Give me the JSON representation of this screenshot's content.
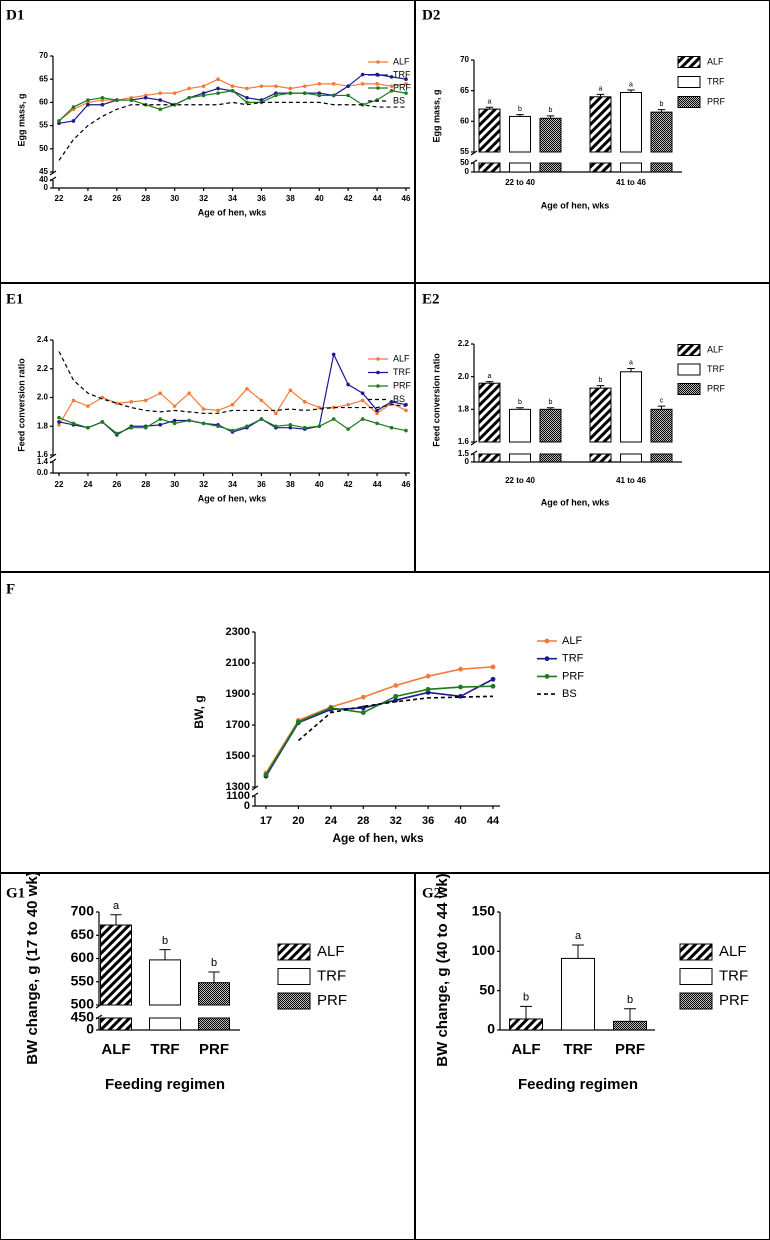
{
  "chart_data": [
    {
      "panel": "D1",
      "type": "line",
      "xlabel": "Age of hen, wks",
      "ylabel": "Egg mass, g",
      "x": [
        22,
        23,
        24,
        25,
        26,
        27,
        28,
        29,
        30,
        31,
        32,
        33,
        34,
        35,
        36,
        37,
        38,
        39,
        40,
        41,
        42,
        43,
        44,
        45,
        46
      ],
      "xlim": [
        22,
        46
      ],
      "xticks": [
        22,
        24,
        26,
        28,
        30,
        32,
        34,
        36,
        38,
        40,
        42,
        44,
        46
      ],
      "ylim": [
        45,
        70
      ],
      "yticks": [
        45,
        50,
        55,
        60,
        65,
        70
      ],
      "ylim_lower": [
        0,
        40
      ],
      "yticks_lower": [
        0,
        40
      ],
      "series": [
        {
          "name": "ALF",
          "color": "#f47a3a",
          "markers": true,
          "dashed": false,
          "values": [
            56,
            58.5,
            60,
            60.5,
            60.5,
            61,
            61.5,
            62,
            62,
            63,
            63.5,
            65,
            63.5,
            63,
            63.5,
            63.5,
            63,
            63.5,
            64,
            64,
            63.5,
            64,
            64,
            63.5,
            64
          ]
        },
        {
          "name": "TRF",
          "color": "#1a1a8c",
          "markers": true,
          "dashed": false,
          "values": [
            55.5,
            56,
            59.5,
            59.5,
            60.5,
            60.5,
            61,
            60.5,
            59.5,
            61,
            62,
            63,
            62.5,
            61,
            60.5,
            62,
            62,
            62,
            62,
            61.5,
            63.5,
            66,
            66,
            65.5,
            65
          ]
        },
        {
          "name": "PRF",
          "color": "#1e7a1e",
          "markers": true,
          "dashed": false,
          "values": [
            56,
            59,
            60.5,
            61,
            60.5,
            60.5,
            59.5,
            58.5,
            59.5,
            61,
            61.5,
            62,
            62.5,
            60,
            60,
            61.5,
            62,
            62,
            61.5,
            61.5,
            61.5,
            59.5,
            60.5,
            62.5,
            62
          ]
        },
        {
          "name": "BS",
          "color": "#000000",
          "markers": false,
          "dashed": true,
          "values": [
            47.5,
            52,
            55,
            57,
            58.5,
            59.5,
            59.5,
            59.5,
            59.5,
            59.5,
            59.5,
            59.5,
            60,
            59.5,
            60,
            60,
            60,
            60,
            60,
            59.5,
            59.5,
            59.5,
            59,
            59,
            59
          ]
        }
      ]
    },
    {
      "panel": "D2",
      "type": "bar",
      "xlabel": "Age of hen, wks",
      "ylabel": "Egg mass, g",
      "categories": [
        "22 to 40",
        "41 to 46"
      ],
      "ylim": [
        55,
        70
      ],
      "yticks": [
        55,
        60,
        65,
        70
      ],
      "ylim_lower": [
        0,
        50
      ],
      "yticks_lower": [
        0,
        50
      ],
      "series": [
        {
          "name": "ALF",
          "pattern": "hatch",
          "values": [
            62,
            64
          ],
          "errors": [
            0.3,
            0.4
          ],
          "labels": [
            "a",
            "a"
          ]
        },
        {
          "name": "TRF",
          "pattern": "open",
          "values": [
            60.8,
            64.7
          ],
          "errors": [
            0.3,
            0.4
          ],
          "labels": [
            "b",
            "a"
          ]
        },
        {
          "name": "PRF",
          "pattern": "dots",
          "values": [
            60.5,
            61.5
          ],
          "errors": [
            0.4,
            0.4
          ],
          "labels": [
            "b",
            "b"
          ]
        }
      ]
    },
    {
      "panel": "E1",
      "type": "line",
      "xlabel": "Age of hen, wks",
      "ylabel": "Feed conversion ratio",
      "x": [
        22,
        23,
        24,
        25,
        26,
        27,
        28,
        29,
        30,
        31,
        32,
        33,
        34,
        35,
        36,
        37,
        38,
        39,
        40,
        41,
        42,
        43,
        44,
        45,
        46
      ],
      "xlim": [
        22,
        46
      ],
      "xticks": [
        22,
        24,
        26,
        28,
        30,
        32,
        34,
        36,
        38,
        40,
        42,
        44,
        46
      ],
      "ylim": [
        1.6,
        2.4
      ],
      "yticks": [
        1.6,
        1.8,
        {
          "value": 2,
          "label": "2.0"
        },
        2.2,
        2.4
      ],
      "ylim_lower": [
        0,
        1.4
      ],
      "yticks_lower": [
        {
          "value": 0,
          "label": "0.0"
        },
        1.4
      ],
      "series": [
        {
          "name": "ALF",
          "color": "#f47a3a",
          "markers": true,
          "dashed": false,
          "values": [
            1.81,
            1.98,
            1.94,
            2.0,
            1.96,
            1.97,
            1.98,
            2.03,
            1.94,
            2.03,
            1.92,
            1.91,
            1.95,
            2.06,
            1.98,
            1.89,
            2.05,
            1.97,
            1.93,
            1.93,
            1.95,
            1.98,
            1.89,
            1.96,
            1.91
          ]
        },
        {
          "name": "TRF",
          "color": "#1a1a8c",
          "markers": true,
          "dashed": false,
          "values": [
            1.83,
            1.81,
            1.79,
            1.83,
            1.74,
            1.8,
            1.8,
            1.81,
            1.84,
            1.84,
            1.82,
            1.81,
            1.76,
            1.79,
            1.85,
            1.79,
            1.79,
            1.78,
            1.8,
            2.3,
            2.09,
            2.03,
            1.91,
            1.97,
            1.95
          ]
        },
        {
          "name": "PRF",
          "color": "#1e7a1e",
          "markers": true,
          "dashed": false,
          "values": [
            1.86,
            1.82,
            1.79,
            1.83,
            1.75,
            1.79,
            1.79,
            1.85,
            1.82,
            1.84,
            1.82,
            1.8,
            1.77,
            1.8,
            1.85,
            1.8,
            1.81,
            1.79,
            1.8,
            1.85,
            1.78,
            1.85,
            1.82,
            1.79,
            1.77
          ]
        },
        {
          "name": "BS",
          "color": "#000000",
          "markers": false,
          "dashed": true,
          "values": [
            2.32,
            2.12,
            2.03,
            1.99,
            1.96,
            1.93,
            1.91,
            1.9,
            1.91,
            1.9,
            1.89,
            1.89,
            1.91,
            1.91,
            1.91,
            1.91,
            1.92,
            1.91,
            1.92,
            1.93,
            1.93,
            1.93,
            1.93,
            1.95,
            1.94
          ]
        }
      ]
    },
    {
      "panel": "E2",
      "type": "bar",
      "xlabel": "Age of hen, wks",
      "ylabel": "Feed conversion ratio",
      "categories": [
        "22 to 40",
        "41 to 46"
      ],
      "ylim": [
        1.6,
        2.2
      ],
      "yticks": [
        1.6,
        1.8,
        {
          "value": 2,
          "label": "2.0"
        },
        2.2
      ],
      "ylim_lower": [
        0,
        1.5
      ],
      "yticks_lower": [
        0,
        1.5
      ],
      "series": [
        {
          "name": "ALF",
          "pattern": "hatch",
          "values": [
            1.96,
            1.93
          ],
          "errors": [
            0.01,
            0.015
          ],
          "labels": [
            "a",
            "b"
          ]
        },
        {
          "name": "TRF",
          "pattern": "open",
          "values": [
            1.8,
            2.03
          ],
          "errors": [
            0.01,
            0.02
          ],
          "labels": [
            "b",
            "a"
          ]
        },
        {
          "name": "PRF",
          "pattern": "dots",
          "values": [
            1.8,
            1.8
          ],
          "errors": [
            0.01,
            0.02
          ],
          "labels": [
            "b",
            "c"
          ]
        }
      ]
    },
    {
      "panel": "F",
      "type": "line",
      "xlabel": "Age of hen, wks",
      "ylabel": "BW, g",
      "categories": [
        "17",
        "20",
        "24",
        "28",
        "32",
        "36",
        "40",
        "44"
      ],
      "ylim": [
        1300,
        2300
      ],
      "yticks": [
        1300,
        1500,
        1700,
        1900,
        2100,
        2300
      ],
      "ylim_lower": [
        0,
        1100
      ],
      "yticks_lower": [
        0,
        1100
      ],
      "series": [
        {
          "name": "ALF",
          "color": "#f47a3a",
          "markers": true,
          "dashed": false,
          "values": [
            1390,
            1730,
            1815,
            1880,
            1955,
            2015,
            2060,
            2075
          ]
        },
        {
          "name": "TRF",
          "color": "#1a1a8c",
          "markers": true,
          "dashed": false,
          "values": [
            1370,
            1715,
            1800,
            1810,
            1860,
            1910,
            1885,
            1995
          ]
        },
        {
          "name": "PRF",
          "color": "#1e7a1e",
          "markers": true,
          "dashed": false,
          "values": [
            1380,
            1720,
            1810,
            1780,
            1885,
            1930,
            1945,
            1950
          ]
        },
        {
          "name": "BS",
          "color": "#000000",
          "markers": false,
          "dashed": true,
          "values": [
            null,
            1600,
            1780,
            1820,
            1850,
            1875,
            1880,
            1885
          ]
        }
      ]
    },
    {
      "panel": "G1",
      "type": "bar",
      "xlabel": "Feeding regimen",
      "ylabel": "BW change, g (17 to 40 wk)",
      "categories": [
        "ALF",
        "TRF",
        "PRF"
      ],
      "patterns": [
        "hatch",
        "open",
        "dots"
      ],
      "values": [
        672,
        597,
        548
      ],
      "errors": [
        22,
        22,
        23
      ],
      "labels": [
        "a",
        "b",
        "b"
      ],
      "ylim": [
        500,
        700
      ],
      "yticks": [
        500,
        550,
        600,
        650,
        700
      ],
      "ylim_lower": [
        0,
        450
      ],
      "yticks_lower": [
        0,
        450
      ]
    },
    {
      "panel": "G2",
      "type": "bar",
      "xlabel": "Feeding regimen",
      "ylabel": "BW change, g (40 to 44 wk)",
      "categories": [
        "ALF",
        "TRF",
        "PRF"
      ],
      "patterns": [
        "hatch",
        "open",
        "dots"
      ],
      "values": [
        14,
        91,
        11
      ],
      "errors": [
        16,
        17,
        16
      ],
      "labels": [
        "b",
        "a",
        "b"
      ],
      "ylim": [
        0,
        150
      ],
      "yticks": [
        0,
        50,
        100,
        150
      ]
    }
  ]
}
